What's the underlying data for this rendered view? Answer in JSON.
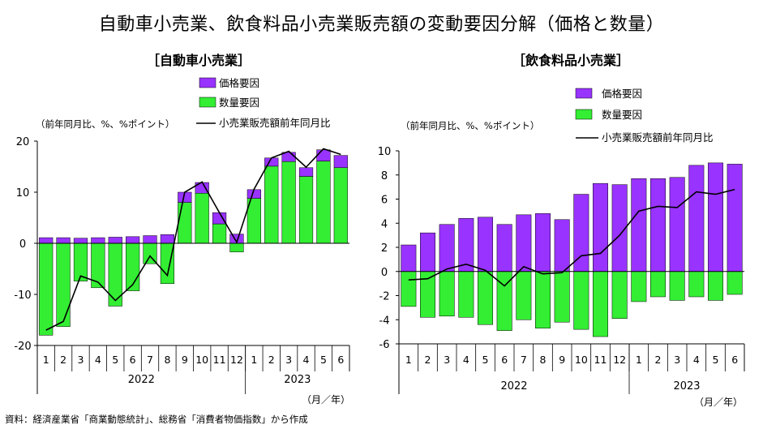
{
  "title": "自動車小売業、飲食料品小売業販売額の変動要因分解（価格と数量）",
  "source": "資料：経済産業省「商業動態統計」、総務省「消費者物価指数」から作成",
  "colors": {
    "price": "#9933ff",
    "volume": "#33ee33",
    "line": "#000000"
  },
  "chart_data": [
    {
      "type": "bar",
      "title": "［自動車小売業］",
      "ylabel": "（前年同月比、%、%ポイント）",
      "xlabel": "（月／年）",
      "ylim": [
        -20,
        20
      ],
      "yticks": [
        20,
        10,
        0,
        -10,
        -20
      ],
      "categories": [
        "1",
        "2",
        "3",
        "4",
        "5",
        "6",
        "7",
        "8",
        "9",
        "10",
        "11",
        "12",
        "1",
        "2",
        "3",
        "4",
        "5",
        "6"
      ],
      "year_labels": [
        "2022",
        "2023"
      ],
      "legend": [
        "価格要因",
        "数量要因",
        "小売業販売額前年同月比"
      ],
      "series": [
        {
          "name": "価格要因",
          "kind": "bar",
          "values": [
            1.1,
            1.1,
            1.0,
            1.1,
            1.2,
            1.3,
            1.5,
            1.7,
            2.0,
            2.1,
            2.2,
            1.8,
            1.7,
            1.6,
            1.8,
            1.7,
            2.2,
            2.4
          ]
        },
        {
          "name": "数量要因",
          "kind": "bar",
          "values": [
            -18.0,
            -16.3,
            -7.4,
            -8.7,
            -12.3,
            -9.3,
            -4.0,
            -7.9,
            8.0,
            9.8,
            3.8,
            -1.7,
            8.8,
            15.1,
            16.0,
            13.1,
            16.1,
            14.8
          ]
        },
        {
          "name": "小売業販売額前年同月比",
          "kind": "line",
          "values": [
            -17.0,
            -15.3,
            -6.4,
            -7.6,
            -11.2,
            -8.1,
            -2.5,
            -6.3,
            10.0,
            12.0,
            6.0,
            0.2,
            10.6,
            16.7,
            18.0,
            14.9,
            18.5,
            17.4
          ]
        }
      ]
    },
    {
      "type": "bar",
      "title": "［飲食料品小売業］",
      "ylabel": "（前年同月比、%、%ポイント）",
      "xlabel": "（月／年）",
      "ylim": [
        -6,
        10
      ],
      "yticks": [
        10,
        8,
        6,
        4,
        2,
        0,
        -2,
        -4,
        -6
      ],
      "categories": [
        "1",
        "2",
        "3",
        "4",
        "5",
        "6",
        "7",
        "8",
        "9",
        "10",
        "11",
        "12",
        "1",
        "2",
        "3",
        "4",
        "5",
        "6"
      ],
      "year_labels": [
        "2022",
        "2023"
      ],
      "legend": [
        "価格要因",
        "数量要因",
        "小売業販売額前年同月比"
      ],
      "series": [
        {
          "name": "価格要因",
          "kind": "bar",
          "values": [
            2.2,
            3.2,
            3.9,
            4.4,
            4.5,
            3.9,
            4.7,
            4.8,
            4.3,
            6.4,
            7.3,
            7.2,
            7.7,
            7.7,
            7.8,
            8.8,
            9.0,
            8.9
          ]
        },
        {
          "name": "数量要因",
          "kind": "bar",
          "values": [
            -2.9,
            -3.8,
            -3.7,
            -3.8,
            -4.4,
            -4.9,
            -4.0,
            -4.7,
            -4.2,
            -4.8,
            -5.4,
            -3.9,
            -2.5,
            -2.1,
            -2.4,
            -2.1,
            -2.4,
            -1.9
          ]
        },
        {
          "name": "小売業販売額前年同月比",
          "kind": "line",
          "values": [
            -0.7,
            -0.6,
            0.2,
            0.6,
            0.1,
            -1.2,
            0.4,
            -0.2,
            -0.1,
            1.3,
            1.5,
            3.0,
            5.0,
            5.4,
            5.3,
            6.6,
            6.4,
            6.8
          ]
        }
      ]
    }
  ]
}
